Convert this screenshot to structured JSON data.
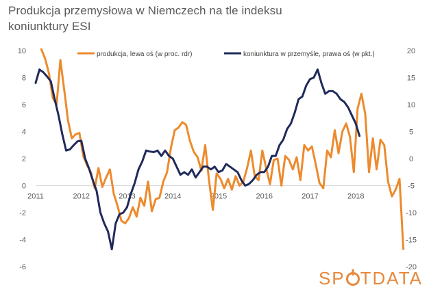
{
  "title": {
    "line1": "Produkcja przemysłowa  w Niemczech  na tle indeksu",
    "line2": "koniunktury ESI"
  },
  "logo": {
    "text_before": "SP",
    "text_after": "TDATA",
    "color": "#e8883b"
  },
  "chart_data": {
    "type": "line",
    "x_tick_labels": [
      "2011",
      "2012",
      "2013",
      "2014",
      "2015",
      "2016",
      "2017",
      "2018"
    ],
    "x_range": [
      2011.0,
      2019.0
    ],
    "left_axis": {
      "range": [
        -6,
        10
      ],
      "ticks": [
        "10",
        "8",
        "6",
        "4",
        "2",
        "0",
        "-2",
        "-4",
        "-6"
      ]
    },
    "right_axis": {
      "range": [
        -20,
        20
      ],
      "ticks": [
        "20",
        "15",
        "10",
        "5",
        "0",
        "-5",
        "-10",
        "-15",
        "-20"
      ]
    },
    "legend_position": "top",
    "series": [
      {
        "name": "produkcja, lewa oś (w proc. rdr)",
        "axis": "left",
        "color": "#ED8A2C",
        "start": 2011.125,
        "step": 0.0833,
        "values": [
          10.1,
          9.4,
          8.3,
          6.5,
          6.0,
          9.3,
          7.1,
          4.8,
          3.5,
          3.8,
          3.9,
          2.2,
          1.5,
          1.0,
          -0.2,
          1.3,
          -0.1,
          0.6,
          1.2,
          -0.6,
          -1.5,
          -2.6,
          -2.8,
          -2.4,
          -1.6,
          -2.3,
          -0.9,
          -1.5,
          0.3,
          -1.9,
          -1.0,
          -0.9,
          0.3,
          1.0,
          2.8,
          4.1,
          4.3,
          4.7,
          4.5,
          3.3,
          2.5,
          2.1,
          1.1,
          3.0,
          0.4,
          -1.8,
          0.9,
          0.5,
          -0.2,
          0.5,
          -0.3,
          0.7,
          0.0,
          0.3,
          1.3,
          2.6,
          0.7,
          0.4,
          2.6,
          1.3,
          0.1,
          1.9,
          2.0,
          0.0,
          2.2,
          1.9,
          1.2,
          2.1,
          0.4,
          3.0,
          2.6,
          2.9,
          1.6,
          0.2,
          -0.2,
          2.6,
          2.1,
          4.1,
          2.4,
          4.0,
          4.6,
          3.6,
          1.0,
          5.7,
          6.8,
          5.3,
          1.0,
          3.5,
          1.2,
          3.4,
          3.0,
          0.3,
          -0.8,
          -0.3,
          0.5,
          -4.7
        ]
      },
      {
        "name": "koniunktura w przemyśle, prawa oś (w pkt.)",
        "axis": "right",
        "color": "#1F2A5B",
        "start": 2011.0,
        "step": 0.0833,
        "values": [
          14.0,
          16.5,
          16.0,
          15.2,
          14.3,
          11.0,
          8.0,
          4.5,
          1.5,
          1.7,
          2.5,
          3.2,
          3.3,
          0.0,
          -1.8,
          -4.0,
          -6.0,
          -10.0,
          -12.0,
          -13.5,
          -16.8,
          -12.0,
          -10.3,
          -10.0,
          -9.0,
          -6.5,
          -4.5,
          -2.0,
          -0.5,
          1.5,
          1.3,
          1.2,
          1.5,
          0.5,
          1.5,
          0.5,
          0.0,
          -1.5,
          -3.0,
          -2.5,
          -3.0,
          -2.0,
          -3.5,
          -2.5,
          -1.5,
          -1.5,
          -2.0,
          -1.5,
          -2.5,
          -2.2,
          -1.0,
          -1.5,
          -2.0,
          -2.5,
          -4.0,
          -5.0,
          -4.7,
          -4.0,
          -3.0,
          -2.5,
          -2.5,
          -1.5,
          0.5,
          0.5,
          2.5,
          3.5,
          5.5,
          6.5,
          8.5,
          11.0,
          11.5,
          13.5,
          14.7,
          15.0,
          16.5,
          14.0,
          12.0,
          12.5,
          12.5,
          12.0,
          11.0,
          10.5,
          9.5,
          8.0,
          6.5,
          4.2
        ]
      }
    ]
  }
}
